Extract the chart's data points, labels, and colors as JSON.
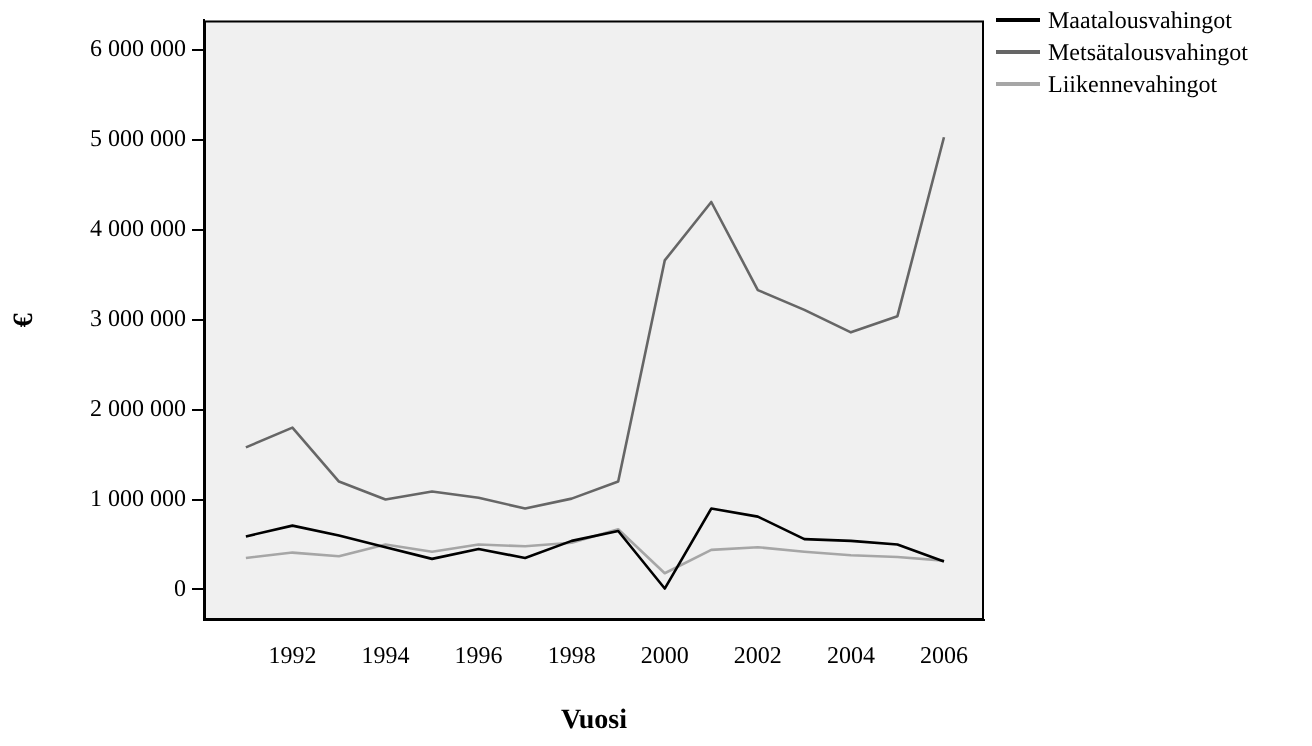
{
  "chart_data": {
    "type": "line",
    "xlabel": "Vuosi",
    "ylabel": "€",
    "x": [
      1991,
      1992,
      1993,
      1994,
      1995,
      1996,
      1997,
      1998,
      1999,
      2000,
      2001,
      2002,
      2003,
      2004,
      2005,
      2006
    ],
    "series": [
      {
        "name": "Maatalousvahingot",
        "color": "#000000",
        "values": [
          590000,
          710000,
          600000,
          470000,
          340000,
          450000,
          350000,
          540000,
          650000,
          10000,
          900000,
          810000,
          560000,
          540000,
          500000,
          310000
        ]
      },
      {
        "name": "Metsätalousvahingot",
        "color": "#666666",
        "values": [
          1580000,
          1800000,
          1200000,
          1000000,
          1090000,
          1020000,
          900000,
          1010000,
          1200000,
          3660000,
          4310000,
          3330000,
          3110000,
          2860000,
          3040000,
          5030000
        ]
      },
      {
        "name": "Liikennevahingot",
        "color": "#a6a6a6",
        "values": [
          350000,
          410000,
          370000,
          500000,
          420000,
          500000,
          480000,
          520000,
          670000,
          180000,
          440000,
          470000,
          420000,
          380000,
          360000,
          320000
        ]
      }
    ],
    "xlim": [
      1990.1,
      2006.86
    ],
    "xticks": [
      1992,
      1994,
      1996,
      1998,
      2000,
      2002,
      2004,
      2006
    ],
    "ylim": [
      -340000,
      6330000
    ],
    "yticks": [
      {
        "value": 0,
        "label": "0"
      },
      {
        "value": 1000000,
        "label": "1 000 000"
      },
      {
        "value": 2000000,
        "label": "2 000 000"
      },
      {
        "value": 3000000,
        "label": "3 000 000"
      },
      {
        "value": 4000000,
        "label": "4 000 000"
      },
      {
        "value": 5000000,
        "label": "5 000 000"
      },
      {
        "value": 6000000,
        "label": "6 000 000"
      }
    ],
    "grid": false,
    "legend": "top right",
    "marker": "none",
    "line_style": "solid"
  }
}
